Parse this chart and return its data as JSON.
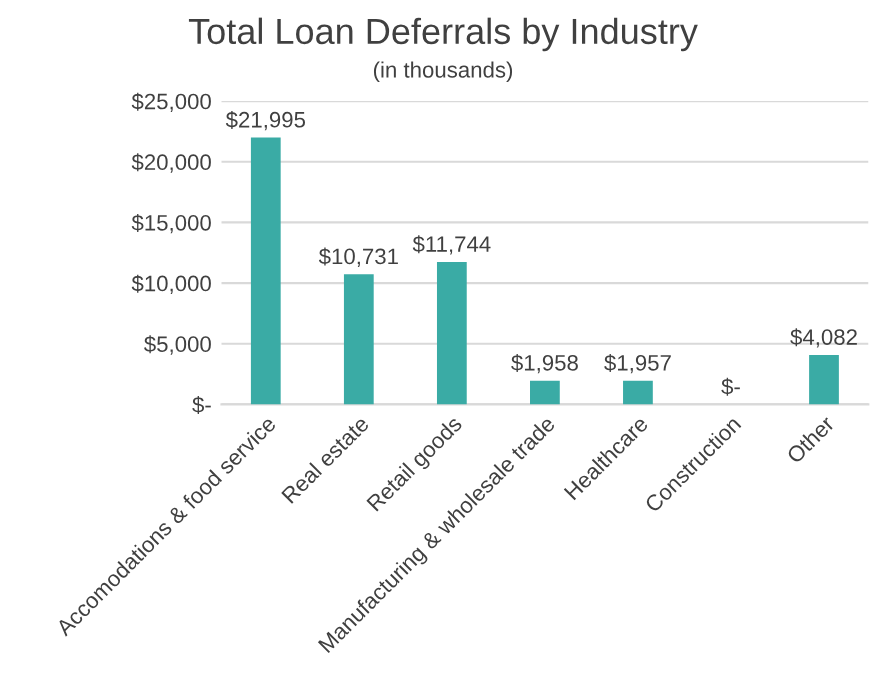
{
  "chart_data": {
    "type": "bar",
    "title": "Total Loan Deferrals by Industry",
    "subtitle": "(in thousands)",
    "categories": [
      "Accomodations & food service",
      "Real estate",
      "Retail goods",
      "Manufacturing & wholesale trade",
      "Healthcare",
      "Construction",
      "Other"
    ],
    "values": [
      21995,
      10731,
      11744,
      1958,
      1957,
      0,
      4082
    ],
    "value_labels": [
      "$21,995",
      "$10,731",
      "$11,744",
      "$1,958",
      "$1,957",
      "$-",
      "$4,082"
    ],
    "color": "#3aaba5",
    "ylim": [
      0,
      25000
    ],
    "yticks": [
      {
        "value": 0,
        "label": "$-"
      },
      {
        "value": 5000,
        "label": "$5,000"
      },
      {
        "value": 10000,
        "label": "$10,000"
      },
      {
        "value": 15000,
        "label": "$15,000"
      },
      {
        "value": 20000,
        "label": "$20,000"
      },
      {
        "value": 25000,
        "label": "$25,000"
      }
    ],
    "grid": "y",
    "legend": false
  }
}
